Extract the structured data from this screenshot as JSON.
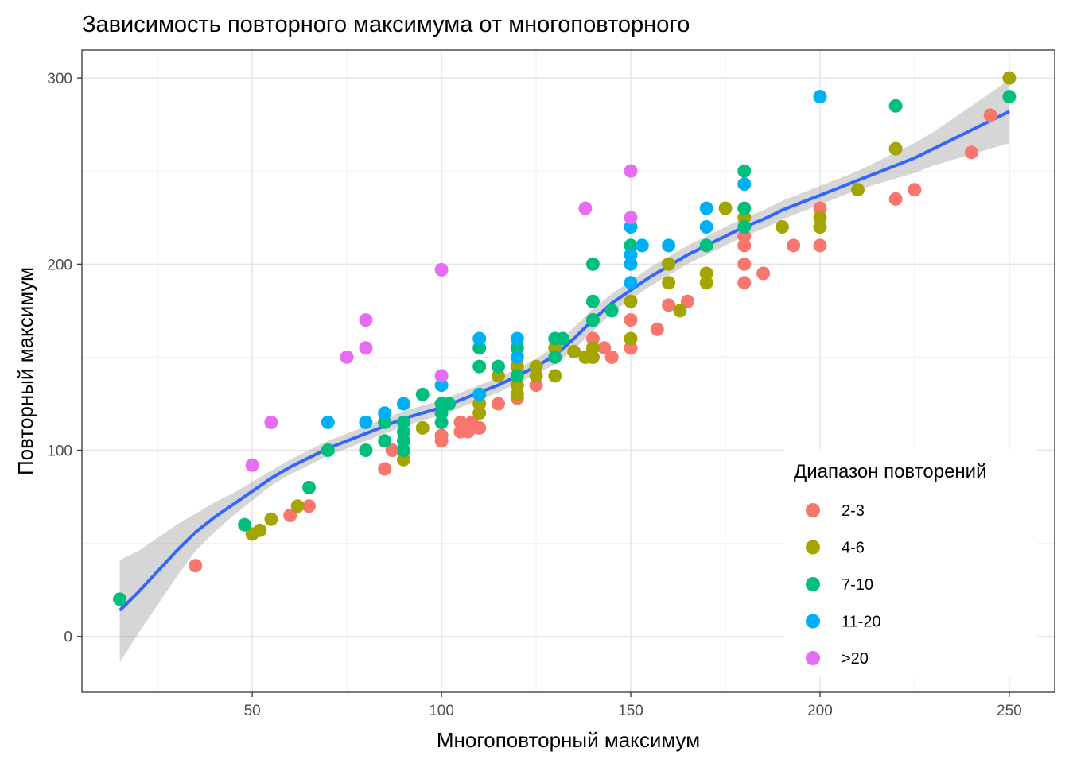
{
  "chart_data": {
    "type": "scatter",
    "title": "Зависимость повторного максимума от многоповторного",
    "xlabel": "Многоповторный максимум",
    "ylabel": "Повторный максимум",
    "xlim": [
      5,
      262
    ],
    "ylim": [
      -30,
      315
    ],
    "x_ticks": [
      50,
      100,
      150,
      200,
      250
    ],
    "y_ticks": [
      0,
      100,
      200,
      300
    ],
    "grid": true,
    "legend": {
      "title": "Диапазон повторений",
      "position": "bottom-right"
    },
    "colors": {
      "2-3": "#F8766D",
      "4-6": "#A3A500",
      "7-10": "#00BF7D",
      "11-20": "#00B0F6",
      ">20": "#E76BF3",
      "smooth": "#3366FF",
      "band": "#999999"
    },
    "series": [
      {
        "name": "2-3",
        "points": [
          [
            35,
            38
          ],
          [
            60,
            65
          ],
          [
            65,
            70
          ],
          [
            85,
            90
          ],
          [
            87,
            100
          ],
          [
            100,
            105
          ],
          [
            100,
            108
          ],
          [
            105,
            110
          ],
          [
            105,
            115
          ],
          [
            107,
            110
          ],
          [
            108,
            112
          ],
          [
            108,
            115
          ],
          [
            110,
            112
          ],
          [
            115,
            125
          ],
          [
            120,
            128
          ],
          [
            125,
            135
          ],
          [
            140,
            150
          ],
          [
            140,
            160
          ],
          [
            143,
            155
          ],
          [
            145,
            150
          ],
          [
            150,
            155
          ],
          [
            150,
            170
          ],
          [
            157,
            165
          ],
          [
            160,
            178
          ],
          [
            165,
            180
          ],
          [
            180,
            190
          ],
          [
            180,
            200
          ],
          [
            180,
            210
          ],
          [
            180,
            215
          ],
          [
            185,
            195
          ],
          [
            193,
            210
          ],
          [
            200,
            210
          ],
          [
            200,
            220
          ],
          [
            200,
            230
          ],
          [
            220,
            235
          ],
          [
            225,
            240
          ],
          [
            240,
            260
          ],
          [
            245,
            280
          ]
        ]
      },
      {
        "name": "4-6",
        "points": [
          [
            50,
            55
          ],
          [
            52,
            57
          ],
          [
            55,
            63
          ],
          [
            62,
            70
          ],
          [
            90,
            95
          ],
          [
            95,
            112
          ],
          [
            110,
            120
          ],
          [
            110,
            125
          ],
          [
            110,
            130
          ],
          [
            115,
            140
          ],
          [
            120,
            130
          ],
          [
            120,
            135
          ],
          [
            120,
            145
          ],
          [
            125,
            140
          ],
          [
            125,
            145
          ],
          [
            130,
            140
          ],
          [
            130,
            155
          ],
          [
            135,
            153
          ],
          [
            138,
            150
          ],
          [
            140,
            150
          ],
          [
            140,
            155
          ],
          [
            140,
            170
          ],
          [
            150,
            160
          ],
          [
            150,
            180
          ],
          [
            160,
            190
          ],
          [
            160,
            200
          ],
          [
            163,
            175
          ],
          [
            170,
            190
          ],
          [
            170,
            195
          ],
          [
            175,
            230
          ],
          [
            180,
            225
          ],
          [
            190,
            220
          ],
          [
            200,
            220
          ],
          [
            200,
            225
          ],
          [
            210,
            240
          ],
          [
            220,
            262
          ],
          [
            250,
            300
          ]
        ]
      },
      {
        "name": "7-10",
        "points": [
          [
            15,
            20
          ],
          [
            48,
            60
          ],
          [
            65,
            80
          ],
          [
            70,
            100
          ],
          [
            80,
            100
          ],
          [
            85,
            105
          ],
          [
            85,
            115
          ],
          [
            90,
            100
          ],
          [
            90,
            105
          ],
          [
            90,
            110
          ],
          [
            90,
            115
          ],
          [
            95,
            130
          ],
          [
            100,
            115
          ],
          [
            100,
            120
          ],
          [
            100,
            125
          ],
          [
            102,
            125
          ],
          [
            110,
            145
          ],
          [
            110,
            155
          ],
          [
            115,
            145
          ],
          [
            120,
            140
          ],
          [
            120,
            155
          ],
          [
            130,
            150
          ],
          [
            130,
            160
          ],
          [
            132,
            160
          ],
          [
            140,
            170
          ],
          [
            140,
            180
          ],
          [
            140,
            200
          ],
          [
            145,
            175
          ],
          [
            150,
            210
          ],
          [
            170,
            210
          ],
          [
            180,
            220
          ],
          [
            180,
            230
          ],
          [
            180,
            250
          ],
          [
            220,
            285
          ],
          [
            250,
            290
          ]
        ]
      },
      {
        "name": "11-20",
        "points": [
          [
            70,
            115
          ],
          [
            80,
            115
          ],
          [
            85,
            120
          ],
          [
            90,
            125
          ],
          [
            100,
            135
          ],
          [
            110,
            130
          ],
          [
            110,
            160
          ],
          [
            120,
            150
          ],
          [
            120,
            160
          ],
          [
            150,
            190
          ],
          [
            150,
            200
          ],
          [
            150,
            205
          ],
          [
            150,
            220
          ],
          [
            153,
            210
          ],
          [
            160,
            210
          ],
          [
            170,
            220
          ],
          [
            170,
            230
          ],
          [
            180,
            243
          ],
          [
            200,
            290
          ]
        ]
      },
      {
        "name": ">20",
        "points": [
          [
            50,
            92
          ],
          [
            55,
            115
          ],
          [
            75,
            150
          ],
          [
            80,
            155
          ],
          [
            80,
            170
          ],
          [
            100,
            140
          ],
          [
            100,
            197
          ],
          [
            138,
            230
          ],
          [
            150,
            225
          ],
          [
            150,
            250
          ]
        ]
      }
    ],
    "smooth": {
      "method": "loess",
      "points": [
        [
          15,
          14
        ],
        [
          20,
          24
        ],
        [
          25,
          35
        ],
        [
          30,
          46
        ],
        [
          35,
          56
        ],
        [
          40,
          64
        ],
        [
          45,
          71
        ],
        [
          50,
          78
        ],
        [
          55,
          85
        ],
        [
          60,
          91
        ],
        [
          65,
          96
        ],
        [
          70,
          101
        ],
        [
          75,
          105
        ],
        [
          80,
          109
        ],
        [
          85,
          113
        ],
        [
          90,
          117
        ],
        [
          95,
          120
        ],
        [
          100,
          123
        ],
        [
          105,
          127
        ],
        [
          110,
          131
        ],
        [
          115,
          135
        ],
        [
          120,
          140
        ],
        [
          125,
          145
        ],
        [
          130,
          151
        ],
        [
          135,
          160
        ],
        [
          140,
          170
        ],
        [
          145,
          179
        ],
        [
          150,
          186
        ],
        [
          155,
          193
        ],
        [
          160,
          199
        ],
        [
          165,
          205
        ],
        [
          170,
          210
        ],
        [
          175,
          215
        ],
        [
          180,
          220
        ],
        [
          185,
          224
        ],
        [
          190,
          229
        ],
        [
          195,
          233
        ],
        [
          200,
          237
        ],
        [
          205,
          241
        ],
        [
          210,
          245
        ],
        [
          215,
          249
        ],
        [
          220,
          253
        ],
        [
          225,
          257
        ],
        [
          230,
          262
        ],
        [
          235,
          267
        ],
        [
          240,
          272
        ],
        [
          245,
          277
        ],
        [
          250,
          282
        ]
      ],
      "band_upper": [
        [
          15,
          41
        ],
        [
          20,
          46
        ],
        [
          25,
          53
        ],
        [
          30,
          60
        ],
        [
          35,
          66
        ],
        [
          40,
          72
        ],
        [
          45,
          77
        ],
        [
          50,
          83
        ],
        [
          55,
          89
        ],
        [
          60,
          95
        ],
        [
          65,
          100
        ],
        [
          70,
          105
        ],
        [
          75,
          109
        ],
        [
          80,
          113
        ],
        [
          85,
          117
        ],
        [
          90,
          121
        ],
        [
          95,
          124
        ],
        [
          100,
          127
        ],
        [
          105,
          131
        ],
        [
          110,
          135
        ],
        [
          115,
          139
        ],
        [
          120,
          144
        ],
        [
          125,
          149
        ],
        [
          130,
          156
        ],
        [
          135,
          166
        ],
        [
          140,
          176
        ],
        [
          145,
          184
        ],
        [
          150,
          191
        ],
        [
          155,
          198
        ],
        [
          160,
          204
        ],
        [
          165,
          210
        ],
        [
          170,
          215
        ],
        [
          175,
          220
        ],
        [
          180,
          225
        ],
        [
          185,
          229
        ],
        [
          190,
          234
        ],
        [
          195,
          238
        ],
        [
          200,
          242
        ],
        [
          205,
          246
        ],
        [
          210,
          250
        ],
        [
          215,
          255
        ],
        [
          220,
          260
        ],
        [
          225,
          265
        ],
        [
          230,
          271
        ],
        [
          235,
          278
        ],
        [
          240,
          285
        ],
        [
          245,
          292
        ],
        [
          250,
          299
        ]
      ],
      "band_lower": [
        [
          15,
          -14
        ],
        [
          20,
          2
        ],
        [
          25,
          17
        ],
        [
          30,
          32
        ],
        [
          35,
          46
        ],
        [
          40,
          56
        ],
        [
          45,
          65
        ],
        [
          50,
          73
        ],
        [
          55,
          81
        ],
        [
          60,
          87
        ],
        [
          65,
          92
        ],
        [
          70,
          97
        ],
        [
          75,
          101
        ],
        [
          80,
          105
        ],
        [
          85,
          109
        ],
        [
          90,
          113
        ],
        [
          95,
          116
        ],
        [
          100,
          119
        ],
        [
          105,
          123
        ],
        [
          110,
          127
        ],
        [
          115,
          131
        ],
        [
          120,
          136
        ],
        [
          125,
          141
        ],
        [
          130,
          146
        ],
        [
          135,
          154
        ],
        [
          140,
          164
        ],
        [
          145,
          174
        ],
        [
          150,
          181
        ],
        [
          155,
          188
        ],
        [
          160,
          194
        ],
        [
          165,
          200
        ],
        [
          170,
          205
        ],
        [
          175,
          210
        ],
        [
          180,
          215
        ],
        [
          185,
          219
        ],
        [
          190,
          224
        ],
        [
          195,
          228
        ],
        [
          200,
          232
        ],
        [
          205,
          236
        ],
        [
          210,
          240
        ],
        [
          215,
          243
        ],
        [
          220,
          246
        ],
        [
          225,
          249
        ],
        [
          230,
          253
        ],
        [
          235,
          256
        ],
        [
          240,
          259
        ],
        [
          245,
          262
        ],
        [
          250,
          265
        ]
      ]
    }
  }
}
